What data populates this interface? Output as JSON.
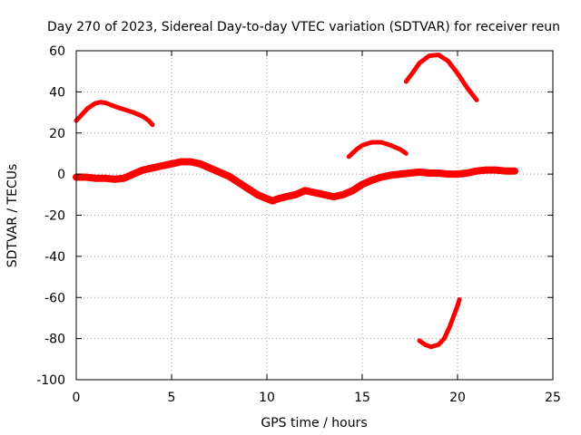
{
  "chart_data": {
    "type": "line",
    "title": "Day 270 of 2023, Sidereal Day-to-day VTEC variation (SDTVAR) for receiver reun",
    "xlabel": "GPS time / hours",
    "ylabel": "SDTVAR / TECUs",
    "xlim": [
      0,
      25
    ],
    "ylim": [
      -100,
      60
    ],
    "xticks": [
      0,
      5,
      10,
      15,
      20,
      25
    ],
    "yticks": [
      -100,
      -80,
      -60,
      -40,
      -20,
      0,
      20,
      40,
      60
    ],
    "xtick_labels": [
      "0",
      "5",
      "10",
      "15",
      "20",
      "25"
    ],
    "ytick_labels": [
      "-100",
      "-80",
      "-60",
      "-40",
      "-20",
      "0",
      "20",
      "40",
      "60"
    ],
    "grid": true,
    "color": "#ff0000",
    "series": [
      {
        "name": "main-band",
        "x": [
          0.0,
          0.5,
          1.0,
          1.5,
          2.0,
          2.5,
          3.0,
          3.5,
          4.0,
          4.5,
          5.0,
          5.5,
          6.0,
          6.5,
          7.0,
          7.5,
          8.0,
          8.5,
          9.0,
          9.5,
          10.0,
          10.3,
          10.6,
          11.0,
          11.5,
          12.0,
          12.5,
          13.0,
          13.5,
          14.0,
          14.5,
          15.0,
          15.5,
          16.0,
          16.5,
          17.0,
          17.5,
          18.0,
          18.5,
          19.0,
          19.5,
          20.0,
          20.5,
          21.0,
          21.5,
          22.0,
          22.5,
          23.0
        ],
        "y": [
          -1.5,
          -1.5,
          -2,
          -2,
          -2.5,
          -2,
          0,
          2,
          3,
          4,
          5,
          6,
          6,
          5,
          3,
          1,
          -1,
          -4,
          -7,
          -10,
          -12,
          -13,
          -12,
          -11,
          -10,
          -8,
          -9,
          -10,
          -11,
          -10,
          -8,
          -5,
          -3,
          -1.5,
          -0.5,
          0,
          0.5,
          1,
          0.5,
          0.5,
          0,
          0,
          0.5,
          1.5,
          2,
          2,
          1.5,
          1.5
        ]
      },
      {
        "name": "arc-early",
        "x": [
          0.0,
          0.3,
          0.6,
          1.0,
          1.3,
          1.6,
          2.0,
          2.5,
          3.0,
          3.5,
          3.8,
          4.0
        ],
        "y": [
          26,
          29,
          32,
          34.5,
          35,
          34.5,
          33,
          31.5,
          30,
          28,
          26,
          24
        ]
      },
      {
        "name": "arc-midday",
        "x": [
          14.3,
          14.7,
          15.0,
          15.5,
          16.0,
          16.5,
          17.0,
          17.3
        ],
        "y": [
          8.5,
          12,
          14,
          15.5,
          15.5,
          14,
          12,
          10
        ]
      },
      {
        "name": "arc-high",
        "x": [
          17.3,
          17.7,
          18.0,
          18.5,
          19.0,
          19.5,
          20.0,
          20.5,
          21.0
        ],
        "y": [
          45,
          50,
          54,
          57.5,
          58,
          55,
          49,
          42,
          36
        ]
      },
      {
        "name": "arc-low",
        "x": [
          18.0,
          18.3,
          18.6,
          19.0,
          19.3,
          19.6,
          20.0,
          20.1
        ],
        "y": [
          -81,
          -83,
          -84,
          -83,
          -80,
          -74,
          -64,
          -61
        ]
      }
    ]
  }
}
